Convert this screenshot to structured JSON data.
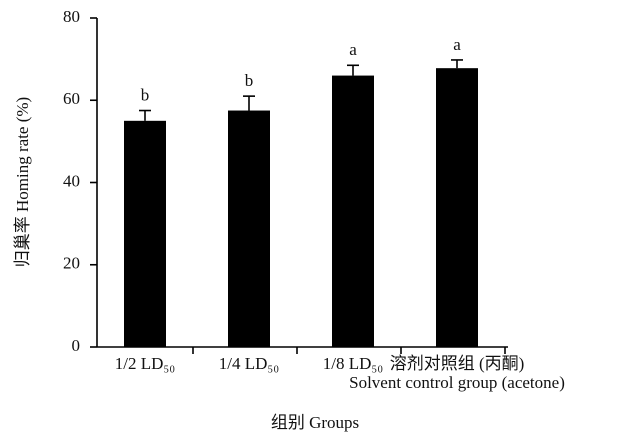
{
  "chart_data": {
    "type": "bar",
    "x_label": "组别 Groups",
    "y_label": "归巢率 Homing rate (%)",
    "categories": [
      "1/2 LD₅₀",
      "1/4 LD₅₀",
      "1/8 LD₅₀",
      "溶剂对照组 (丙酮)\nSolvent control group (acetone)"
    ],
    "values": [
      55,
      57.5,
      66,
      67.8
    ],
    "errors": [
      2.5,
      3.5,
      2.5,
      2
    ],
    "letters": [
      "b",
      "b",
      "a",
      "a"
    ],
    "color": "#000000",
    "ylim": [
      0,
      80
    ],
    "yticks": [
      0,
      20,
      40,
      60,
      80
    ],
    "grid": false
  }
}
